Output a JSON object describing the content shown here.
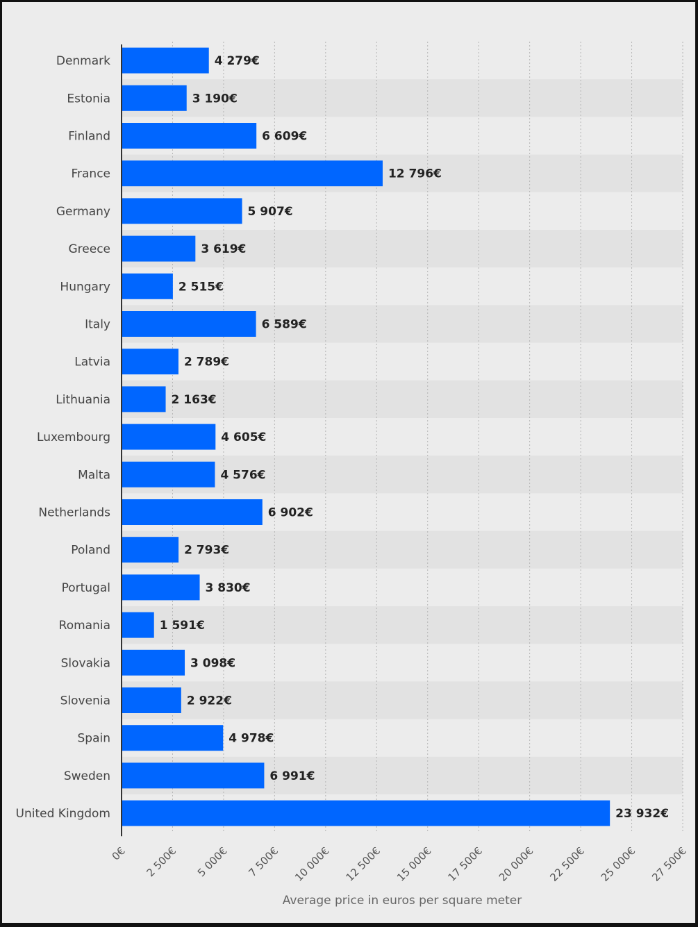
{
  "chart_data": {
    "type": "bar",
    "orientation": "horizontal",
    "categories": [
      "Denmark",
      "Estonia",
      "Finland",
      "France",
      "Germany",
      "Greece",
      "Hungary",
      "Italy",
      "Latvia",
      "Lithuania",
      "Luxembourg",
      "Malta",
      "Netherlands",
      "Poland",
      "Portugal",
      "Romania",
      "Slovakia",
      "Slovenia",
      "Spain",
      "Sweden",
      "United Kingdom"
    ],
    "values": [
      4279,
      3190,
      6609,
      12796,
      5907,
      3619,
      2515,
      6589,
      2789,
      2163,
      4605,
      4576,
      6902,
      2793,
      3830,
      1591,
      3098,
      2922,
      4978,
      6991,
      23932
    ],
    "value_labels": [
      "4 279€",
      "3 190€",
      "6 609€",
      "12 796€",
      "5 907€",
      "3 619€",
      "2 515€",
      "6 589€",
      "2 789€",
      "2 163€",
      "4 605€",
      "4 576€",
      "6 902€",
      "2 793€",
      "3 830€",
      "1 591€",
      "3 098€",
      "2 922€",
      "4 978€",
      "6 991€",
      "23 932€"
    ],
    "ticks": [
      0,
      2500,
      5000,
      7500,
      10000,
      12500,
      15000,
      17500,
      20000,
      22500,
      25000,
      27500
    ],
    "tick_labels": [
      "0€",
      "2 500€",
      "5 000€",
      "7 500€",
      "10 000€",
      "12 500€",
      "15 000€",
      "17 500€",
      "20 000€",
      "22 500€",
      "25 000€",
      "27 500€"
    ],
    "xlim": [
      0,
      27500
    ],
    "xlabel": "Average price in euros per square meter",
    "title": "",
    "ylabel": "",
    "grid": "vertical dotted",
    "bar_color": "#0066ff"
  }
}
